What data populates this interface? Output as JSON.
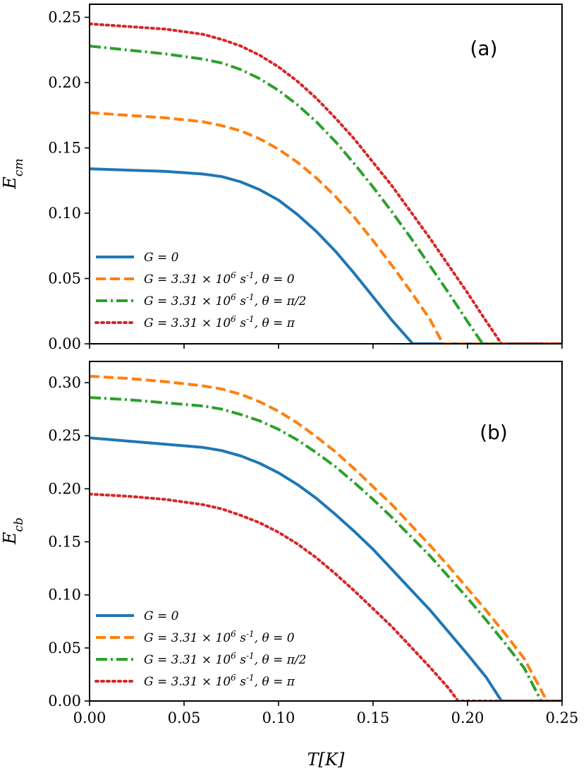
{
  "chart_data": [
    {
      "type": "line",
      "panel_label": "(a)",
      "xlabel": "T[K]",
      "ylabel": "E_cm",
      "ylabel_main": "E",
      "ylabel_sub": "cm",
      "xlim": [
        0.0,
        0.25
      ],
      "ylim": [
        0.0,
        0.26
      ],
      "xticks": [
        "0.00",
        "0.05",
        "0.10",
        "0.15",
        "0.20",
        "0.25"
      ],
      "show_xtick_labels": false,
      "yticks": [
        "0.00",
        "0.05",
        "0.10",
        "0.15",
        "0.20",
        "0.25"
      ],
      "legend_position": "lower-left",
      "series": [
        {
          "name": "G = 0",
          "color": "#1f77b4",
          "style": "solid",
          "x": [
            0.0,
            0.02,
            0.04,
            0.06,
            0.07,
            0.08,
            0.09,
            0.1,
            0.11,
            0.12,
            0.13,
            0.14,
            0.15,
            0.16,
            0.171,
            0.18,
            0.2,
            0.22,
            0.25
          ],
          "y": [
            0.134,
            0.133,
            0.132,
            0.13,
            0.128,
            0.124,
            0.118,
            0.11,
            0.099,
            0.086,
            0.071,
            0.054,
            0.036,
            0.018,
            0.0,
            0.0,
            0.0,
            0.0,
            0.0
          ]
        },
        {
          "name": "G = 3.31 × 10^6 s^-1, θ = 0",
          "color": "#ff7f0e",
          "style": "dashed",
          "x": [
            0.0,
            0.02,
            0.04,
            0.06,
            0.07,
            0.08,
            0.09,
            0.1,
            0.11,
            0.12,
            0.13,
            0.14,
            0.15,
            0.16,
            0.17,
            0.18,
            0.187,
            0.2,
            0.22,
            0.25
          ],
          "y": [
            0.177,
            0.175,
            0.173,
            0.17,
            0.167,
            0.163,
            0.157,
            0.149,
            0.139,
            0.127,
            0.113,
            0.097,
            0.079,
            0.06,
            0.04,
            0.019,
            0.0,
            0.0,
            0.0,
            0.0
          ]
        },
        {
          "name": "G = 3.31 × 10^6 s^-1, θ = π/2",
          "color": "#2ca02c",
          "style": "dashdot",
          "x": [
            0.0,
            0.02,
            0.04,
            0.06,
            0.07,
            0.08,
            0.09,
            0.1,
            0.11,
            0.12,
            0.13,
            0.14,
            0.15,
            0.16,
            0.17,
            0.18,
            0.19,
            0.2,
            0.208,
            0.22,
            0.25
          ],
          "y": [
            0.228,
            0.225,
            0.222,
            0.218,
            0.215,
            0.21,
            0.203,
            0.194,
            0.183,
            0.17,
            0.155,
            0.138,
            0.12,
            0.101,
            0.081,
            0.06,
            0.039,
            0.017,
            0.0,
            0.0,
            0.0
          ]
        },
        {
          "name": "G = 3.31 × 10^6 s^-1, θ = π",
          "color": "#d62728",
          "style": "dotted",
          "x": [
            0.0,
            0.02,
            0.04,
            0.06,
            0.07,
            0.08,
            0.09,
            0.1,
            0.11,
            0.12,
            0.13,
            0.14,
            0.15,
            0.16,
            0.17,
            0.18,
            0.19,
            0.2,
            0.21,
            0.218,
            0.23,
            0.25
          ],
          "y": [
            0.245,
            0.243,
            0.241,
            0.237,
            0.233,
            0.228,
            0.221,
            0.212,
            0.201,
            0.188,
            0.173,
            0.157,
            0.139,
            0.121,
            0.101,
            0.081,
            0.06,
            0.039,
            0.017,
            0.0,
            0.0,
            0.0
          ]
        }
      ]
    },
    {
      "type": "line",
      "panel_label": "(b)",
      "xlabel": "T[K]",
      "ylabel": "E_cb",
      "ylabel_main": "E",
      "ylabel_sub": "cb",
      "xlim": [
        0.0,
        0.25
      ],
      "ylim": [
        0.0,
        0.32
      ],
      "xticks": [
        "0.00",
        "0.05",
        "0.10",
        "0.15",
        "0.20",
        "0.25"
      ],
      "show_xtick_labels": true,
      "yticks": [
        "0.00",
        "0.05",
        "0.10",
        "0.15",
        "0.20",
        "0.25",
        "0.30"
      ],
      "legend_position": "lower-left",
      "series": [
        {
          "name": "G = 0",
          "color": "#1f77b4",
          "style": "solid",
          "x": [
            0.0,
            0.02,
            0.04,
            0.06,
            0.07,
            0.08,
            0.09,
            0.1,
            0.11,
            0.12,
            0.13,
            0.14,
            0.15,
            0.16,
            0.17,
            0.18,
            0.19,
            0.2,
            0.21,
            0.218,
            0.23,
            0.25
          ],
          "y": [
            0.248,
            0.245,
            0.242,
            0.239,
            0.236,
            0.231,
            0.224,
            0.215,
            0.204,
            0.191,
            0.176,
            0.16,
            0.143,
            0.124,
            0.105,
            0.086,
            0.065,
            0.044,
            0.022,
            0.0,
            0.0,
            0.0
          ]
        },
        {
          "name": "G = 3.31 × 10^6 s^-1, θ = 0",
          "color": "#ff7f0e",
          "style": "dashed",
          "x": [
            0.0,
            0.02,
            0.04,
            0.06,
            0.07,
            0.08,
            0.09,
            0.1,
            0.11,
            0.12,
            0.13,
            0.14,
            0.15,
            0.16,
            0.17,
            0.18,
            0.19,
            0.2,
            0.21,
            0.22,
            0.23,
            0.242,
            0.25
          ],
          "y": [
            0.306,
            0.304,
            0.301,
            0.297,
            0.294,
            0.289,
            0.282,
            0.273,
            0.262,
            0.249,
            0.235,
            0.219,
            0.202,
            0.185,
            0.166,
            0.147,
            0.127,
            0.106,
            0.085,
            0.063,
            0.04,
            0.0,
            0.0
          ]
        },
        {
          "name": "G = 3.31 × 10^6 s^-1, θ = π/2",
          "color": "#2ca02c",
          "style": "dashdot",
          "x": [
            0.0,
            0.02,
            0.04,
            0.06,
            0.07,
            0.08,
            0.09,
            0.1,
            0.11,
            0.12,
            0.13,
            0.14,
            0.15,
            0.16,
            0.17,
            0.18,
            0.19,
            0.2,
            0.21,
            0.22,
            0.23,
            0.239,
            0.25
          ],
          "y": [
            0.286,
            0.284,
            0.281,
            0.278,
            0.275,
            0.27,
            0.264,
            0.256,
            0.246,
            0.234,
            0.221,
            0.206,
            0.19,
            0.173,
            0.155,
            0.137,
            0.117,
            0.097,
            0.076,
            0.054,
            0.031,
            0.0,
            0.0
          ]
        },
        {
          "name": "G = 3.31 × 10^6 s^-1, θ = π",
          "color": "#d62728",
          "style": "dotted",
          "x": [
            0.0,
            0.02,
            0.04,
            0.06,
            0.07,
            0.08,
            0.09,
            0.1,
            0.11,
            0.12,
            0.13,
            0.14,
            0.15,
            0.16,
            0.17,
            0.18,
            0.19,
            0.195,
            0.21,
            0.25
          ],
          "y": [
            0.195,
            0.193,
            0.19,
            0.185,
            0.181,
            0.175,
            0.168,
            0.159,
            0.148,
            0.135,
            0.12,
            0.104,
            0.087,
            0.07,
            0.051,
            0.032,
            0.012,
            0.0,
            0.0,
            0.0
          ]
        }
      ]
    }
  ]
}
